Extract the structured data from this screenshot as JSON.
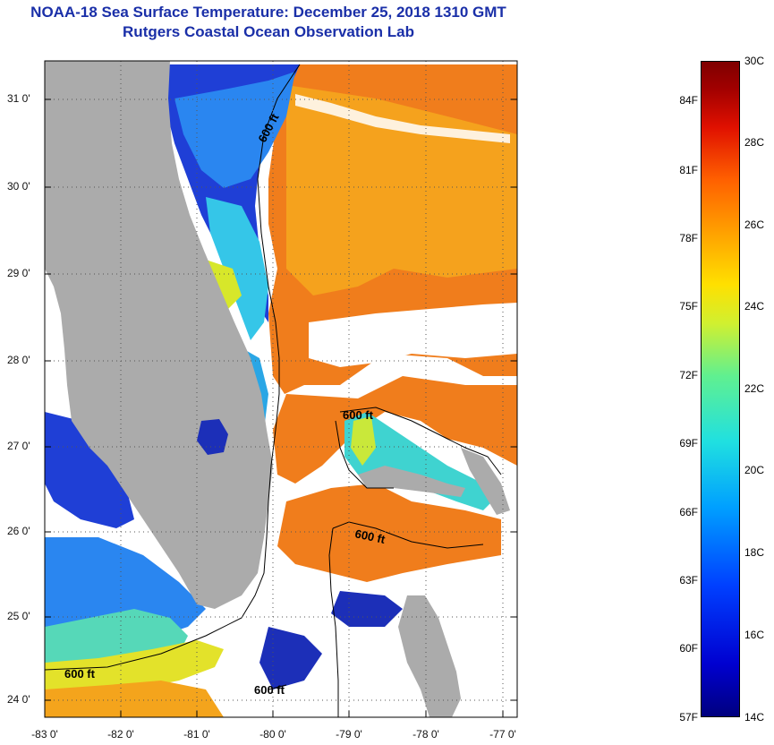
{
  "title": {
    "line1": "NOAA-18 Sea Surface Temperature:  December 25, 2018 1310 GMT",
    "line2": "Rutgers Coastal Ocean Observation Lab"
  },
  "axes": {
    "lat_labels": [
      "31 0'",
      "30 0'",
      "29 0'",
      "28 0'",
      "27 0'",
      "26 0'",
      "25 0'",
      "24 0'"
    ],
    "lon_labels": [
      "-83 0'",
      "-82 0'",
      "-81 0'",
      "-80 0'",
      "-79 0'",
      "-78 0'",
      "-77 0'"
    ],
    "lat_range": [
      23.8,
      31.5
    ],
    "lon_range": [
      -83,
      -76.8
    ]
  },
  "contour_labels": [
    "600 ft",
    "600 ft",
    "600 ft",
    "600 ft",
    "600 ft"
  ],
  "colorbar": {
    "fahrenheit": [
      "84F",
      "81F",
      "78F",
      "75F",
      "72F",
      "69F",
      "66F",
      "63F",
      "60F",
      "57F"
    ],
    "celsius": [
      "30C",
      "28C",
      "26C",
      "24C",
      "22C",
      "20C",
      "18C",
      "16C",
      "14C"
    ],
    "range_c": [
      14,
      30
    ]
  },
  "colors": {
    "title": "#1a2fa8",
    "land": "#ababab",
    "cloud": "#ffffff"
  }
}
